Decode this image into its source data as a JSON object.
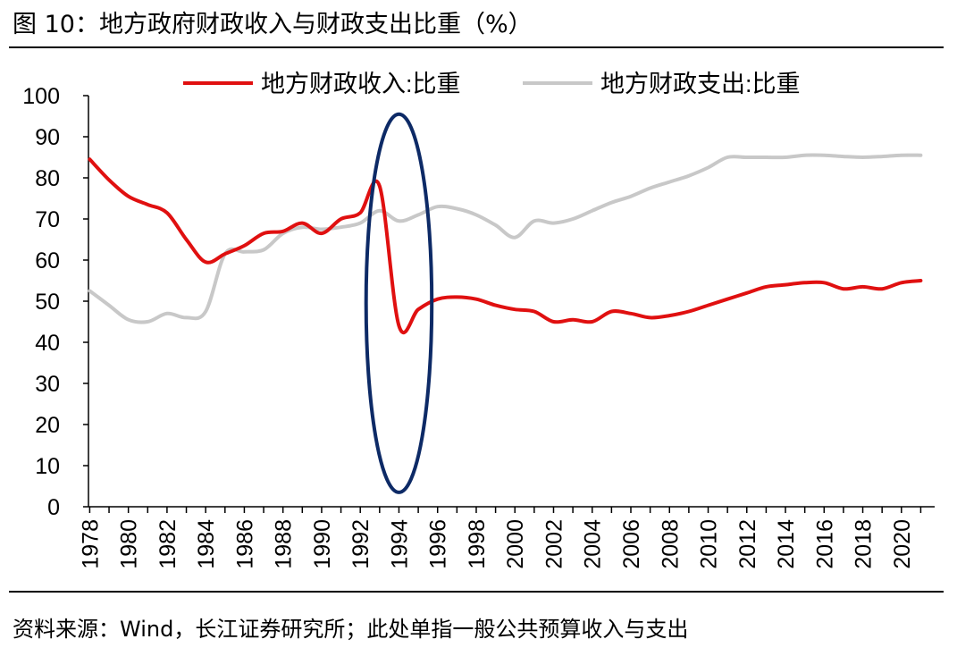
{
  "figure": {
    "title": "图  10：地方政府财政收入与财政支出比重（%）",
    "source": "资料来源：Wind，长江证券研究所；此处单指一般公共预算收入与支出"
  },
  "colors": {
    "revenue": "#e01010",
    "expenditure": "#c8c8c8",
    "highlight": "#0d2a66"
  },
  "chart_data": {
    "type": "line",
    "title": "地方政府财政收入与财政支出比重（%）",
    "xlabel": "",
    "ylabel": "",
    "ylim": [
      0,
      100
    ],
    "yticks": [
      0,
      10,
      20,
      30,
      40,
      50,
      60,
      70,
      80,
      90,
      100
    ],
    "x": [
      1978,
      1979,
      1980,
      1981,
      1982,
      1983,
      1984,
      1985,
      1986,
      1987,
      1988,
      1989,
      1990,
      1991,
      1992,
      1993,
      1994,
      1995,
      1996,
      1997,
      1998,
      1999,
      2000,
      2001,
      2002,
      2003,
      2004,
      2005,
      2006,
      2007,
      2008,
      2009,
      2010,
      2011,
      2012,
      2013,
      2014,
      2015,
      2016,
      2017,
      2018,
      2019,
      2020,
      2021
    ],
    "xtick_labels": [
      "1978",
      "1980",
      "1982",
      "1984",
      "1986",
      "1988",
      "1990",
      "1992",
      "1994",
      "1996",
      "1998",
      "2000",
      "2002",
      "2004",
      "2006",
      "2008",
      "2010",
      "2012",
      "2014",
      "2016",
      "2018",
      "2020"
    ],
    "legend_position": "top",
    "series": [
      {
        "name": "地方财政收入:比重",
        "color_key": "revenue",
        "values": [
          84.5,
          79.5,
          75.5,
          73.5,
          71.5,
          65.0,
          59.5,
          61.5,
          63.5,
          66.5,
          67.0,
          69.0,
          66.5,
          70.0,
          71.5,
          78.0,
          44.0,
          48.0,
          50.5,
          51.0,
          50.5,
          49.0,
          48.0,
          47.5,
          45.0,
          45.5,
          45.0,
          47.5,
          47.0,
          46.0,
          46.5,
          47.5,
          49.0,
          50.5,
          52.0,
          53.5,
          54.0,
          54.5,
          54.5,
          53.0,
          53.5,
          53.0,
          54.5,
          55.0
        ]
      },
      {
        "name": "地方财政支出:比重",
        "color_key": "expenditure",
        "values": [
          52.5,
          49.0,
          45.5,
          45.0,
          47.0,
          46.0,
          47.5,
          61.5,
          62.0,
          62.5,
          66.5,
          68.0,
          67.5,
          68.0,
          69.0,
          72.0,
          69.5,
          71.0,
          73.0,
          72.5,
          71.0,
          68.5,
          65.5,
          69.5,
          69.0,
          70.0,
          72.0,
          74.0,
          75.5,
          77.5,
          79.0,
          80.5,
          82.5,
          85.0,
          85.0,
          85.0,
          85.0,
          85.5,
          85.5,
          85.2,
          85.0,
          85.2,
          85.5,
          85.5
        ]
      }
    ],
    "annotations": [
      {
        "type": "ellipse",
        "center_x": 1994,
        "y_range": [
          3.5,
          95.5
        ],
        "x_range": [
          1992.6,
          1996.0
        ],
        "color_key": "highlight"
      }
    ]
  }
}
